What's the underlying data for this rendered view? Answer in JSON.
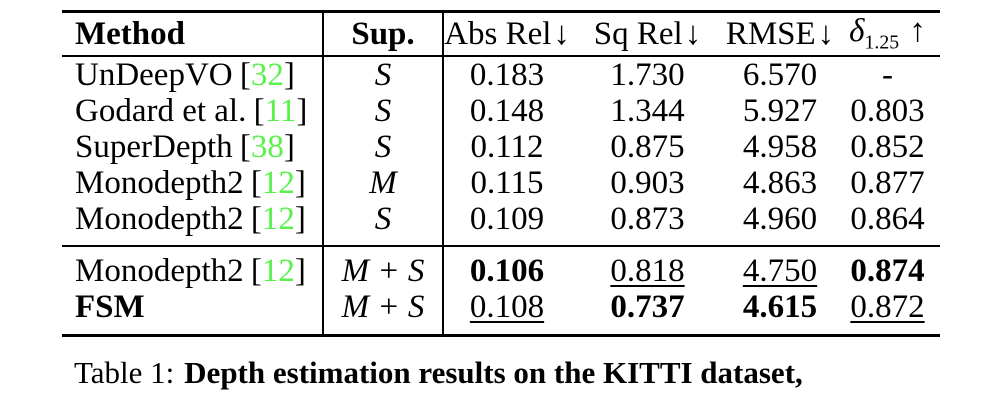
{
  "colors": {
    "citation_green": "#5BF14D",
    "rule": "#000000",
    "background": "#ffffff"
  },
  "header": {
    "method": "Method",
    "sup": "Sup.",
    "abs_rel": "Abs Rel",
    "abs_rel_arrow": "↓",
    "sq_rel": "Sq Rel",
    "sq_rel_arrow": "↓",
    "rmse": "RMSE",
    "rmse_arrow": "↓",
    "delta": "δ",
    "delta_sub": "1.25",
    "delta_arrow": "↑"
  },
  "rows": [
    {
      "method": "UnDeepVO",
      "bracket_open": "[",
      "cite": "32",
      "bracket_close": "]",
      "sup": "S",
      "abs_rel": "0.183",
      "sq_rel": "1.730",
      "rmse": "6.570",
      "delta": "-"
    },
    {
      "method": "Godard et al.",
      "bracket_open": "[",
      "cite": "11",
      "bracket_close": "]",
      "sup": "S",
      "abs_rel": "0.148",
      "sq_rel": "1.344",
      "rmse": "5.927",
      "delta": "0.803"
    },
    {
      "method": "SuperDepth",
      "bracket_open": "[",
      "cite": "38",
      "bracket_close": "]",
      "sup": "S",
      "abs_rel": "0.112",
      "sq_rel": "0.875",
      "rmse": "4.958",
      "delta": "0.852"
    },
    {
      "method": "Monodepth2",
      "bracket_open": "[",
      "cite": "12",
      "bracket_close": "]",
      "sup": "M",
      "abs_rel": "0.115",
      "sq_rel": "0.903",
      "rmse": "4.863",
      "delta": "0.877"
    },
    {
      "method": "Monodepth2",
      "bracket_open": "[",
      "cite": "12",
      "bracket_close": "]",
      "sup": "S",
      "abs_rel": "0.109",
      "sq_rel": "0.873",
      "rmse": "4.960",
      "delta": "0.864"
    }
  ],
  "rows_bottom": [
    {
      "method": "Monodepth2",
      "bracket_open": "[",
      "cite": "12",
      "bracket_close": "]",
      "sup": "M + S",
      "abs_rel": "0.106",
      "sq_rel": "0.818",
      "rmse": "4.750",
      "delta": "0.874"
    },
    {
      "method": "FSM",
      "bracket_open": "",
      "cite": "",
      "bracket_close": "",
      "sup": "M + S",
      "abs_rel": "0.108",
      "sq_rel": "0.737",
      "rmse": "4.615",
      "delta": "0.872"
    }
  ],
  "caption": {
    "prefix": "Table 1:",
    "title": "Depth estimation results on the KITTI dataset,"
  }
}
